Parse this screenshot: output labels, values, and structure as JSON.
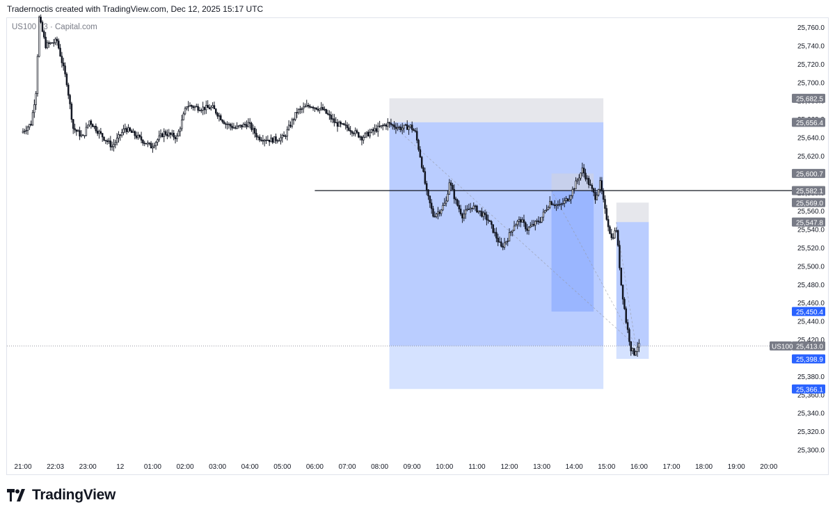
{
  "header": {
    "credit": "Tradernoctis created with TradingView.com, Dec 12, 2025 15:17 UTC"
  },
  "symbol_info": "US100 · 3 · Capital.com",
  "footer": {
    "brand": "TradingView",
    "logo_icon": "tradingview-logo-icon"
  },
  "colors": {
    "candle": "#131722",
    "box_gray": "#d1d4dc",
    "box_blue_dark": "#2962ff",
    "box_blue_light": "#90b4ff",
    "label_gray": "#787b86",
    "label_blue": "#2962ff"
  },
  "chart_data": {
    "type": "candlestick",
    "symbol": "US100",
    "interval": "3",
    "source": "Capital.com",
    "x_ticks": [
      "21:00",
      "22:03",
      "23:00",
      "12",
      "01:00",
      "02:00",
      "03:00",
      "04:00",
      "05:00",
      "06:00",
      "07:00",
      "08:00",
      "09:00",
      "10:00",
      "11:00",
      "12:00",
      "13:00",
      "14:00",
      "15:00",
      "16:00",
      "17:00",
      "18:00",
      "19:00",
      "20:00"
    ],
    "y_ticks": [
      25300,
      25320,
      25340,
      25360,
      25380,
      25400,
      25420,
      25440,
      25460,
      25480,
      25500,
      25520,
      25540,
      25560,
      25580,
      25600,
      25620,
      25640,
      25660,
      25680,
      25700,
      25720,
      25740,
      25760
    ],
    "ylim": [
      25294,
      25770
    ],
    "price_path": [
      [
        0,
        25645
      ],
      [
        0.3,
        25655
      ],
      [
        0.45,
        25690
      ],
      [
        0.55,
        25770
      ],
      [
        0.75,
        25740
      ],
      [
        1.1,
        25745
      ],
      [
        1.4,
        25700
      ],
      [
        1.6,
        25650
      ],
      [
        1.9,
        25640
      ],
      [
        2.1,
        25658
      ],
      [
        2.4,
        25645
      ],
      [
        2.8,
        25630
      ],
      [
        3.2,
        25650
      ],
      [
        3.6,
        25640
      ],
      [
        4.0,
        25630
      ],
      [
        4.4,
        25645
      ],
      [
        4.8,
        25640
      ],
      [
        5.1,
        25675
      ],
      [
        5.5,
        25672
      ],
      [
        5.9,
        25672
      ],
      [
        6.3,
        25655
      ],
      [
        6.6,
        25650
      ],
      [
        7.0,
        25655
      ],
      [
        7.3,
        25640
      ],
      [
        7.7,
        25637
      ],
      [
        8.1,
        25640
      ],
      [
        8.5,
        25668
      ],
      [
        8.9,
        25675
      ],
      [
        9.3,
        25670
      ],
      [
        9.7,
        25655
      ],
      [
        10.1,
        25650
      ],
      [
        10.5,
        25640
      ],
      [
        10.9,
        25648
      ],
      [
        11.3,
        25655
      ],
      [
        11.7,
        25650
      ],
      [
        12.0,
        25652
      ],
      [
        12.15,
        25645
      ],
      [
        12.3,
        25620
      ],
      [
        12.5,
        25580
      ],
      [
        12.7,
        25555
      ],
      [
        12.9,
        25560
      ],
      [
        13.1,
        25570
      ],
      [
        13.2,
        25592
      ],
      [
        13.4,
        25570
      ],
      [
        13.6,
        25555
      ],
      [
        13.9,
        25565
      ],
      [
        14.1,
        25560
      ],
      [
        14.4,
        25550
      ],
      [
        14.6,
        25535
      ],
      [
        14.8,
        25520
      ],
      [
        15.0,
        25530
      ],
      [
        15.2,
        25545
      ],
      [
        15.4,
        25550
      ],
      [
        15.6,
        25540
      ],
      [
        15.8,
        25545
      ],
      [
        16.0,
        25550
      ],
      [
        16.3,
        25570
      ],
      [
        16.6,
        25565
      ],
      [
        16.9,
        25575
      ],
      [
        17.1,
        25590
      ],
      [
        17.3,
        25605
      ],
      [
        17.5,
        25590
      ],
      [
        17.7,
        25575
      ],
      [
        17.85,
        25590
      ],
      [
        18.0,
        25560
      ],
      [
        18.2,
        25530
      ],
      [
        18.35,
        25540
      ],
      [
        18.5,
        25480
      ],
      [
        18.65,
        25440
      ],
      [
        18.8,
        25410
      ],
      [
        18.9,
        25405
      ],
      [
        19.0,
        25413
      ]
    ],
    "horizontal_line": {
      "price": 25582.1,
      "from_hour": 9.0
    },
    "last_price": {
      "label": "US100",
      "value": 25413.0
    },
    "positions": [
      {
        "start_hour": 11.3,
        "end_hour": 17.9,
        "entry": 25656.4,
        "stop": 25682.5,
        "target": 25366.1,
        "filled_to": 25413.0
      },
      {
        "start_hour": 16.3,
        "end_hour": 17.6,
        "entry": 25582.1,
        "stop": 25600.7,
        "target": 25450.4
      },
      {
        "start_hour": 18.3,
        "end_hour": 19.3,
        "entry": 25547.8,
        "stop": 25569.0,
        "target": 25398.9,
        "filled_to": 25413.0
      }
    ],
    "price_labels": [
      {
        "value": "25,682.5",
        "price": 25682.5,
        "style": "gray"
      },
      {
        "value": "25,656.4",
        "price": 25656.4,
        "style": "gray"
      },
      {
        "value": "25,600.7",
        "price": 25600.7,
        "style": "gray"
      },
      {
        "value": "25,582.1",
        "price": 25582.1,
        "style": "gray"
      },
      {
        "value": "25,569.0",
        "price": 25569.0,
        "style": "gray"
      },
      {
        "value": "25,547.8",
        "price": 25547.8,
        "style": "gray"
      },
      {
        "value": "25,450.4",
        "price": 25450.4,
        "style": "blue"
      },
      {
        "value": "25,413.0",
        "price": 25413.0,
        "style": "gray"
      },
      {
        "value": "25,398.9",
        "price": 25398.9,
        "style": "blue"
      },
      {
        "value": "25,366.1",
        "price": 25366.1,
        "style": "blue"
      }
    ]
  }
}
